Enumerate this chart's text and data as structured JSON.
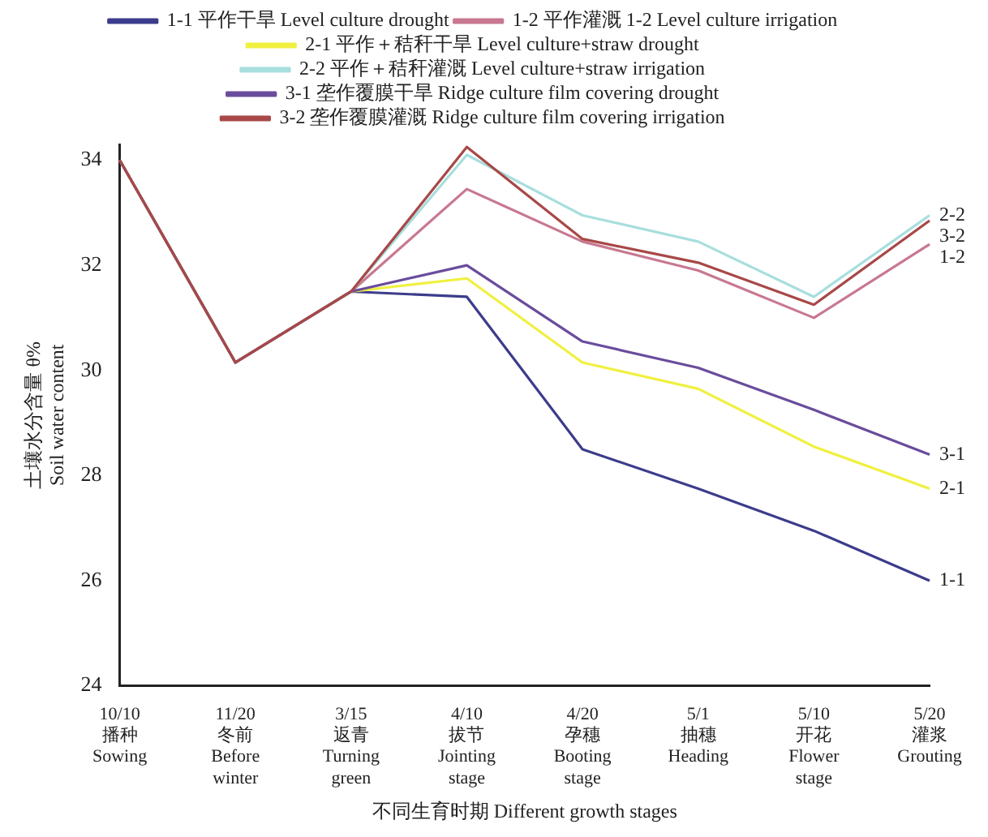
{
  "chart_data": {
    "type": "line",
    "xlabel": "不同生育时期 Different growth stages",
    "ylabel": "土壤水分含量 θ%\nSoil water content",
    "categories": [
      "10/10\n播种\nSowing",
      "11/20\n冬前\nBefore\nwinter",
      "3/15\n返青\nTurning\ngreen",
      "4/10\n拔节\nJointing\nstage",
      "4/20\n孕穗\nBooting\nstage",
      "5/1\n抽穗\nHeading",
      "5/10\n开花\nFlower\nstage",
      "5/20\n灌浆\nGrouting"
    ],
    "series": [
      {
        "name": "1-1 平作干旱 Level culture drought",
        "color": "#3c3c8c",
        "values": [
          34,
          30.15,
          31.5,
          31.4,
          28.5,
          27.75,
          26.95,
          26.0
        ]
      },
      {
        "name": "1-2 平作灌溉 1-2 Level culture irrigation",
        "color": "#c87890",
        "values": [
          34,
          30.15,
          31.5,
          33.45,
          32.45,
          31.9,
          31.0,
          32.4
        ]
      },
      {
        "name": "2-1 平作＋秸秆干旱 Level culture+straw drought",
        "color": "#f0f040",
        "values": [
          34,
          30.15,
          31.5,
          31.75,
          30.15,
          29.65,
          28.55,
          27.75
        ]
      },
      {
        "name": "2-2 平作＋秸秆灌溉 Level culture+straw irrigation",
        "color": "#a8dede",
        "values": [
          34,
          30.15,
          31.5,
          34.1,
          32.95,
          32.45,
          31.4,
          32.95
        ]
      },
      {
        "name": "3-1 垄作覆膜干旱 Ridge culture film covering drought",
        "color": "#6a4c9c",
        "values": [
          34,
          30.15,
          31.5,
          32.0,
          30.55,
          30.05,
          29.25,
          28.4
        ]
      },
      {
        "name": "3-2 垄作覆膜灌溉 Ridge culture film covering irrigation",
        "color": "#a84848",
        "values": [
          34,
          30.15,
          31.5,
          34.25,
          32.5,
          32.05,
          31.25,
          32.85
        ]
      }
    ],
    "ylim": [
      24,
      34.3
    ],
    "yticks": [
      24,
      26,
      28,
      30,
      32,
      34
    ],
    "grid": false,
    "legend": "top",
    "marker": "none",
    "line_style": "solid",
    "annotations": [
      {
        "text": "2-2",
        "x": "5/20\n灌浆\nGrouting",
        "y": 32.95
      },
      {
        "text": "3-2",
        "x": "5/20\n灌浆\nGrouting",
        "y": 32.85
      },
      {
        "text": "1-2",
        "x": "5/20\n灌浆\nGrouting",
        "y": 32.4
      },
      {
        "text": "3-1",
        "x": "5/20\n灌浆\nGrouting",
        "y": 28.4
      },
      {
        "text": "2-1",
        "x": "5/20\n灌浆\nGrouting",
        "y": 27.75
      },
      {
        "text": "1-1",
        "x": "5/20\n灌浆\nGrouting",
        "y": 26.0
      }
    ]
  }
}
